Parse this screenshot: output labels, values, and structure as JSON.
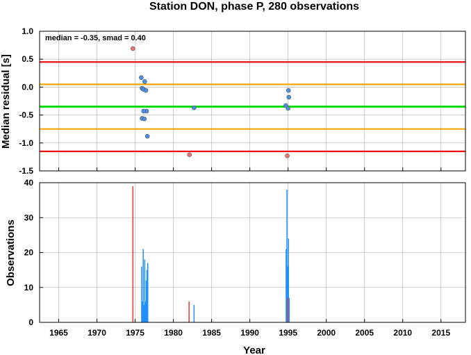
{
  "chart_data": [
    {
      "type": "scatter",
      "title": "Station DON, phase P, 280 observations",
      "ylabel": "Median residual [s]",
      "annotation": "median = -0.35, smad = 0.40",
      "xlim": [
        1962.5,
        2018.2
      ],
      "ylim": [
        -1.5,
        1.0
      ],
      "yticks": [
        "1.0",
        "0.5",
        "0.0",
        "-0.5",
        "-1.0",
        "-1.5"
      ],
      "yticks_values": [
        1.0,
        0.5,
        0.0,
        -0.5,
        -1.0,
        -1.5
      ],
      "grid": true,
      "hlines": [
        {
          "name": "median",
          "y": -0.35,
          "color": "#00dd00"
        },
        {
          "name": "median + 1 smad",
          "y": 0.05,
          "color": "#ffa500"
        },
        {
          "name": "median - 1 smad",
          "y": -0.75,
          "color": "#ffa500"
        },
        {
          "name": "median + 2 smad",
          "y": 0.45,
          "color": "#ee1111"
        },
        {
          "name": "median - 2 smad",
          "y": -1.15,
          "color": "#ee1111"
        }
      ],
      "series": [
        {
          "color": "#4a90e8",
          "x": [
            1975.8,
            1975.9,
            1976.1,
            1976.25,
            1976.4,
            1976.5,
            1975.9,
            1976.2,
            1976.1,
            1976.6,
            1982.7,
            1994.7,
            1995.05,
            1995.1,
            1995.0
          ],
          "y": [
            0.17,
            -0.02,
            -0.04,
            0.1,
            -0.06,
            -0.43,
            -0.56,
            -0.57,
            -0.43,
            -0.88,
            -0.37,
            -0.33,
            -0.06,
            -0.18,
            -0.38
          ]
        },
        {
          "color": "#f07070",
          "x": [
            1974.7,
            1982.1,
            1994.9
          ],
          "y": [
            0.69,
            -1.21,
            -1.23
          ]
        }
      ]
    },
    {
      "type": "bar",
      "xlabel": "Year",
      "ylabel": "Observations",
      "xlim": [
        1962.5,
        2018.2
      ],
      "ylim": [
        0,
        40
      ],
      "xticks": [
        "1965",
        "1970",
        "1975",
        "1980",
        "1985",
        "1990",
        "1995",
        "2000",
        "2005",
        "2010",
        "2015"
      ],
      "xticks_values": [
        1965,
        1970,
        1975,
        1980,
        1985,
        1990,
        1995,
        2000,
        2005,
        2010,
        2015
      ],
      "yticks": [
        "0",
        "10",
        "20",
        "30",
        "40"
      ],
      "yticks_values": [
        0,
        10,
        20,
        30,
        40
      ],
      "grid": true,
      "series": [
        {
          "color": "#1e90ff",
          "x": [
            1975.85,
            1975.95,
            1976.05,
            1976.15,
            1976.25,
            1976.35,
            1976.45,
            1976.55,
            1976.65,
            1982.7,
            1994.75,
            1994.85,
            1994.95,
            1995.05,
            1995.15
          ],
          "y": [
            16,
            6,
            21,
            5,
            18,
            6,
            12,
            15,
            17,
            5,
            21,
            38,
            16,
            24,
            7
          ]
        },
        {
          "color": "#ee3333",
          "x": [
            1974.7,
            1982.05,
            1994.95
          ],
          "y": [
            39,
            6,
            7
          ]
        }
      ]
    }
  ]
}
